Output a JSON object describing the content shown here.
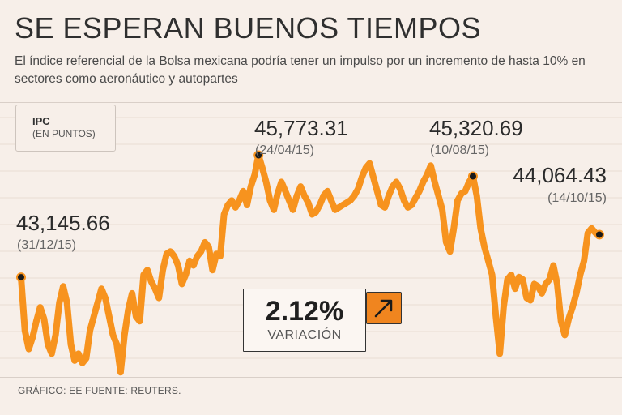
{
  "header": {
    "title": "SE ESPERAN BUENOS TIEMPOS",
    "subtitle": "El índice referencial de la Bolsa mexicana podría tener un impulso por un incremento de hasta 10% en sectores como aeronáutico y autopartes"
  },
  "legend": {
    "title": "IPC",
    "unit": "(EN PUNTOS)"
  },
  "variation": {
    "value": "2.12%",
    "label": "VARIACIÓN",
    "direction_icon": "arrow-up-right-icon"
  },
  "footer": {
    "source": "GRÁFICO: EE FUENTE: REUTERS."
  },
  "colors": {
    "line": "#f7931e",
    "marker": "#1a1a1a",
    "background": "#f7efe9",
    "grid": "#eadcd3",
    "arrow_box": "#f0851f"
  },
  "chart_data": {
    "type": "line",
    "title": "IPC (EN PUNTOS)",
    "xlabel": "",
    "ylabel": "",
    "ylim": [
      41000,
      46900
    ],
    "grid": "horizontal",
    "series": [
      {
        "name": "IPC",
        "values": [
          43145.66,
          42000,
          41600,
          41850,
          42200,
          42500,
          42250,
          41700,
          41500,
          41900,
          42600,
          42950,
          42600,
          41700,
          41350,
          41500,
          41300,
          41400,
          42000,
          42300,
          42600,
          42900,
          42700,
          42300,
          41900,
          41700,
          41100,
          41900,
          42450,
          42800,
          42300,
          42200,
          43200,
          43300,
          43050,
          42900,
          42700,
          43300,
          43650,
          43700,
          43600,
          43400,
          43000,
          43200,
          43500,
          43400,
          43600,
          43700,
          43900,
          43800,
          43300,
          43650,
          43600,
          44500,
          44700,
          44800,
          44650,
          44800,
          45000,
          44700,
          45100,
          45350,
          45773.31,
          45500,
          45200,
          44800,
          44600,
          44950,
          45200,
          45000,
          44800,
          44600,
          44900,
          45100,
          44900,
          44750,
          44500,
          44550,
          44700,
          44900,
          45000,
          44800,
          44600,
          44650,
          44700,
          44750,
          44800,
          44900,
          45050,
          45300,
          45500,
          45600,
          45300,
          45000,
          44700,
          44650,
          44900,
          45100,
          45200,
          45050,
          44800,
          44650,
          44700,
          44850,
          45000,
          45200,
          45350,
          45550,
          45200,
          44900,
          44600,
          43900,
          43700,
          44200,
          44800,
          44950,
          45000,
          45200,
          45320.69,
          44900,
          44200,
          43800,
          43500,
          43200,
          42300,
          41500,
          42500,
          43100,
          43200,
          42900,
          43150,
          43100,
          42700,
          42650,
          43000,
          42950,
          42800,
          43000,
          43100,
          43400,
          43000,
          42200,
          41900,
          42250,
          42500,
          42800,
          43200,
          43500,
          44100,
          44200,
          44100,
          44064.43
        ]
      }
    ],
    "annotations": [
      {
        "label": "43,145.66",
        "date": "(31/12/15)"
      },
      {
        "label": "45,773.31",
        "date": "(24/04/15)"
      },
      {
        "label": "45,320.69",
        "date": "(10/08/15)"
      },
      {
        "label": "44,064.43",
        "date": "(14/10/15)"
      }
    ],
    "source": "REUTERS"
  }
}
